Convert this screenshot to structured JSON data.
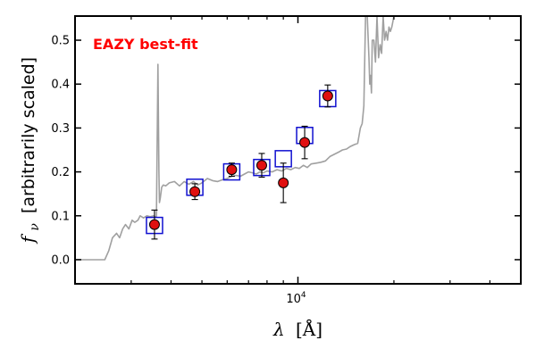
{
  "chart_data": {
    "type": "scatter",
    "title": "",
    "annotation": "EAZY best-fit",
    "xlabel_prefix": "λ",
    "xlabel_unit": "[Å]",
    "ylabel_symbol": "f",
    "ylabel_sub": "ν",
    "ylabel_text": "[arbitrarily scaled]",
    "x_scale": "log",
    "xlim": [
      2000,
      50000
    ],
    "ylim": [
      -0.055,
      0.555
    ],
    "x_major_tick": 10000,
    "x_major_tick_base": "10",
    "x_major_tick_exp": "4",
    "y_ticks": [
      0.0,
      0.1,
      0.2,
      0.3,
      0.4,
      0.5
    ],
    "y_tick_labels": [
      "0.0",
      "0.1",
      "0.2",
      "0.3",
      "0.4",
      "0.5"
    ],
    "colors": {
      "sed": "#a0a0a0",
      "model_box": "#1010d0",
      "observed": "#e01010",
      "annotation": "#ff0000",
      "errorbar": "#000000"
    },
    "series": [
      {
        "role": "template",
        "x": [
          2000,
          2480,
          2550,
          2620,
          2700,
          2760,
          2820,
          2880,
          2950,
          3020,
          3080,
          3150,
          3200,
          3280,
          3360,
          3440,
          3530,
          3600,
          3640,
          3665,
          3680,
          3700,
          3740,
          3780,
          3850,
          3950,
          4100,
          4250,
          4400,
          4550,
          4700,
          4850,
          5000,
          5200,
          5400,
          5600,
          5800,
          6000,
          6200,
          6400,
          6600,
          6800,
          7000,
          7200,
          7400,
          7600,
          7800,
          8000,
          8300,
          8600,
          8900,
          9200,
          9500,
          9800,
          10100,
          10400,
          10700,
          11000,
          11400,
          11800,
          12200,
          12600,
          13000,
          13400,
          13800,
          14200,
          14600,
          15000,
          15400,
          15700,
          15900,
          16100,
          16300,
          16500,
          16700,
          16800,
          16900,
          17000,
          17100,
          17300,
          17500,
          17700,
          17900,
          18100,
          18300,
          18500,
          18700,
          18900,
          19100,
          19300,
          19500,
          19700,
          20000,
          21000,
          22000,
          25000,
          30000,
          40000,
          50000
        ],
        "y": [
          0.0,
          0.0,
          0.02,
          0.05,
          0.06,
          0.05,
          0.07,
          0.08,
          0.07,
          0.09,
          0.085,
          0.09,
          0.1,
          0.095,
          0.1,
          0.098,
          0.1,
          0.096,
          0.445,
          0.2,
          0.13,
          0.14,
          0.165,
          0.17,
          0.168,
          0.175,
          0.178,
          0.168,
          0.178,
          0.172,
          0.178,
          0.17,
          0.175,
          0.185,
          0.18,
          0.178,
          0.182,
          0.185,
          0.19,
          0.192,
          0.19,
          0.195,
          0.2,
          0.198,
          0.195,
          0.2,
          0.198,
          0.202,
          0.2,
          0.205,
          0.202,
          0.208,
          0.205,
          0.21,
          0.208,
          0.215,
          0.21,
          0.218,
          0.22,
          0.222,
          0.225,
          0.235,
          0.24,
          0.245,
          0.25,
          0.252,
          0.258,
          0.262,
          0.265,
          0.3,
          0.31,
          0.35,
          0.555,
          0.555,
          0.46,
          0.4,
          0.42,
          0.38,
          0.5,
          0.5,
          0.45,
          0.555,
          0.46,
          0.49,
          0.47,
          0.555,
          0.5,
          0.52,
          0.5,
          0.53,
          0.52,
          0.53,
          0.555,
          0.555,
          0.555,
          0.555,
          0.555,
          0.555,
          0.555
        ]
      },
      {
        "role": "model_photometry",
        "x": [
          3550,
          4750,
          6200,
          7700,
          9000,
          10500,
          12400
        ],
        "y": [
          0.078,
          0.165,
          0.2,
          0.21,
          0.23,
          0.283,
          0.367
        ]
      },
      {
        "role": "observed_photometry",
        "x": [
          3550,
          4750,
          6200,
          7700,
          9000,
          10500,
          12400
        ],
        "y": [
          0.08,
          0.155,
          0.205,
          0.215,
          0.175,
          0.267,
          0.373
        ],
        "yerr": [
          0.033,
          0.018,
          0.015,
          0.027,
          0.045,
          0.037,
          0.025
        ]
      }
    ]
  }
}
